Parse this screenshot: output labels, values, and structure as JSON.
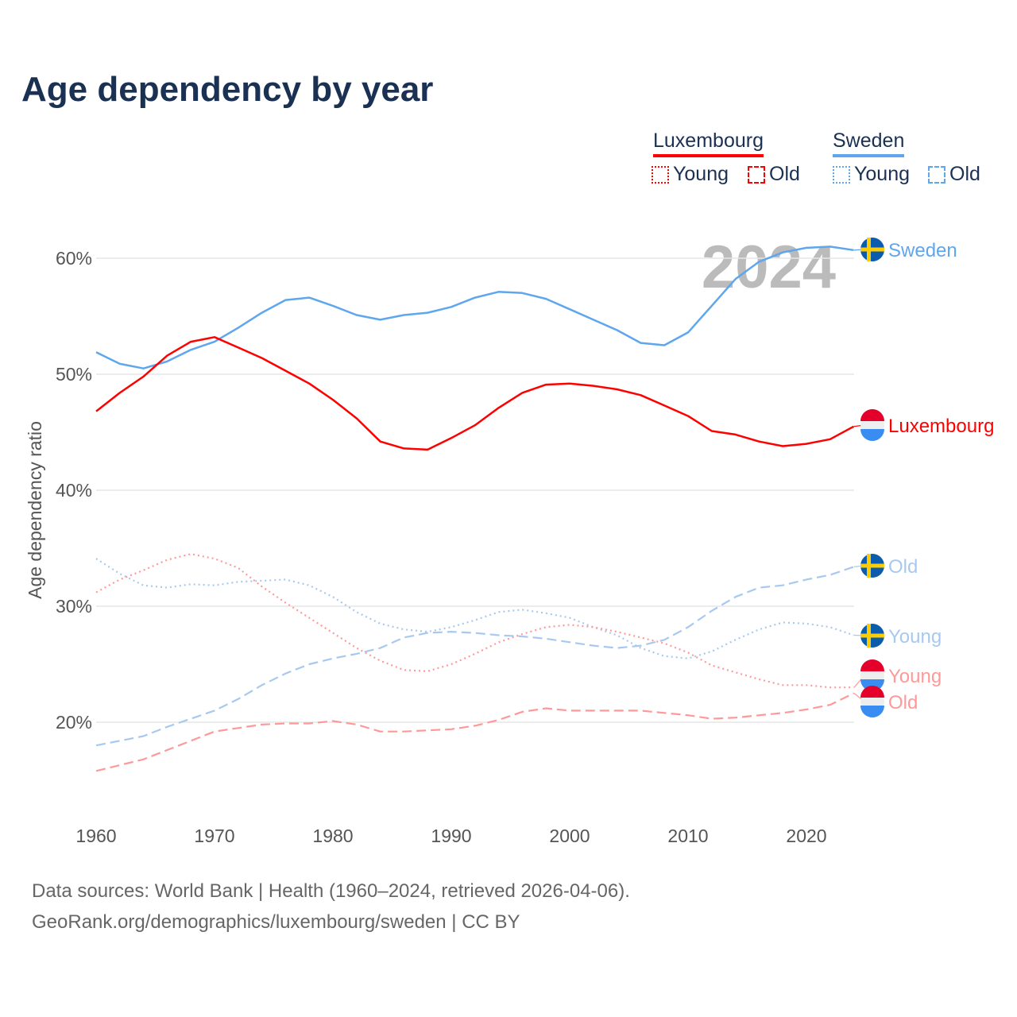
{
  "title": "Age dependency by year",
  "legend": {
    "groups": [
      {
        "name": "Luxembourg",
        "color": "#ff0000",
        "light": "#ff9999",
        "items": [
          "Young",
          "Old"
        ]
      },
      {
        "name": "Sweden",
        "color": "#5ea6ee",
        "light": "#a8c9ef",
        "items": [
          "Young",
          "Old"
        ]
      }
    ]
  },
  "watermark_year": "2024",
  "source_line1": "Data sources: World Bank | Health (1960–2024, retrieved 2026-04-06).",
  "source_line2": "GeoRank.org/demographics/luxembourg/sweden | CC BY",
  "chart_data": {
    "type": "line",
    "title": "Age dependency by year",
    "xlabel": "",
    "ylabel": "Age dependency ratio",
    "xlim": [
      1960,
      2024
    ],
    "ylim": [
      13,
      64
    ],
    "x_ticks": [
      1960,
      1970,
      1980,
      1990,
      2000,
      2010,
      2020
    ],
    "y_ticks": [
      20,
      30,
      40,
      50,
      60
    ],
    "y_tick_labels": [
      "20%",
      "30%",
      "40%",
      "50%",
      "60%"
    ],
    "grid": true,
    "legend_position": "top-right",
    "x": [
      1960,
      1962,
      1964,
      1966,
      1968,
      1970,
      1972,
      1974,
      1976,
      1978,
      1980,
      1982,
      1984,
      1986,
      1988,
      1990,
      1992,
      1994,
      1996,
      1998,
      2000,
      2002,
      2004,
      2006,
      2008,
      2010,
      2012,
      2014,
      2016,
      2018,
      2020,
      2022,
      2024
    ],
    "series": [
      {
        "name": "Sweden",
        "label": "Sweden",
        "country": "Sweden",
        "style": "solid",
        "color": "#5ea6ee",
        "values": [
          51.9,
          50.9,
          50.5,
          51.1,
          52.1,
          52.8,
          54.0,
          55.3,
          56.4,
          56.6,
          55.9,
          55.1,
          54.7,
          55.1,
          55.3,
          55.8,
          56.6,
          57.1,
          57.0,
          56.5,
          55.6,
          54.7,
          53.8,
          52.7,
          52.5,
          53.6,
          55.9,
          58.2,
          59.7,
          60.5,
          60.9,
          61.0,
          60.7
        ]
      },
      {
        "name": "Luxembourg",
        "label": "Luxembourg",
        "country": "Luxembourg",
        "style": "solid",
        "color": "#ff0000",
        "values": [
          46.8,
          48.4,
          49.8,
          51.6,
          52.8,
          53.2,
          52.3,
          51.4,
          50.3,
          49.2,
          47.8,
          46.2,
          44.2,
          43.6,
          43.5,
          44.5,
          45.6,
          47.1,
          48.4,
          49.1,
          49.2,
          49.0,
          48.7,
          48.2,
          47.3,
          46.4,
          45.1,
          44.8,
          44.2,
          43.8,
          44.0,
          44.4,
          45.5
        ]
      },
      {
        "name": "Sweden Old",
        "label": "Old",
        "country": "Sweden",
        "style": "dashed",
        "color": "#a8c9ef",
        "values": [
          18.0,
          18.4,
          18.8,
          19.6,
          20.3,
          21.0,
          22.0,
          23.2,
          24.2,
          25.0,
          25.5,
          25.9,
          26.4,
          27.3,
          27.7,
          27.8,
          27.7,
          27.5,
          27.4,
          27.2,
          26.9,
          26.6,
          26.4,
          26.6,
          27.1,
          28.2,
          29.6,
          30.8,
          31.6,
          31.8,
          32.3,
          32.7,
          33.4
        ]
      },
      {
        "name": "Sweden Young",
        "label": "Young",
        "country": "Sweden",
        "style": "dotted",
        "color": "#a8c9ef",
        "values": [
          34.1,
          32.8,
          31.8,
          31.6,
          31.9,
          31.8,
          32.1,
          32.2,
          32.3,
          31.8,
          30.8,
          29.5,
          28.5,
          28.0,
          27.8,
          28.2,
          28.8,
          29.5,
          29.7,
          29.4,
          29.0,
          28.2,
          27.5,
          26.4,
          25.7,
          25.5,
          26.1,
          27.1,
          28.0,
          28.6,
          28.5,
          28.2,
          27.5
        ]
      },
      {
        "name": "Luxembourg Young",
        "label": "Young",
        "country": "Luxembourg",
        "style": "dotted",
        "color": "#ff9999",
        "values": [
          31.2,
          32.3,
          33.1,
          34.0,
          34.5,
          34.1,
          33.3,
          31.7,
          30.3,
          29.0,
          27.7,
          26.4,
          25.3,
          24.5,
          24.4,
          25.0,
          25.9,
          26.9,
          27.6,
          28.2,
          28.4,
          28.2,
          27.8,
          27.3,
          26.8,
          26.0,
          24.9,
          24.3,
          23.7,
          23.2,
          23.2,
          23.0,
          23.0
        ]
      },
      {
        "name": "Luxembourg Old",
        "label": "Old",
        "country": "Luxembourg",
        "style": "dashed",
        "color": "#ff9999",
        "values": [
          15.8,
          16.3,
          16.8,
          17.6,
          18.4,
          19.2,
          19.5,
          19.8,
          19.9,
          19.9,
          20.1,
          19.8,
          19.2,
          19.2,
          19.3,
          19.4,
          19.7,
          20.2,
          20.9,
          21.2,
          21.0,
          21.0,
          21.0,
          21.0,
          20.8,
          20.6,
          20.3,
          20.4,
          20.6,
          20.8,
          21.1,
          21.5,
          22.5
        ]
      }
    ]
  }
}
